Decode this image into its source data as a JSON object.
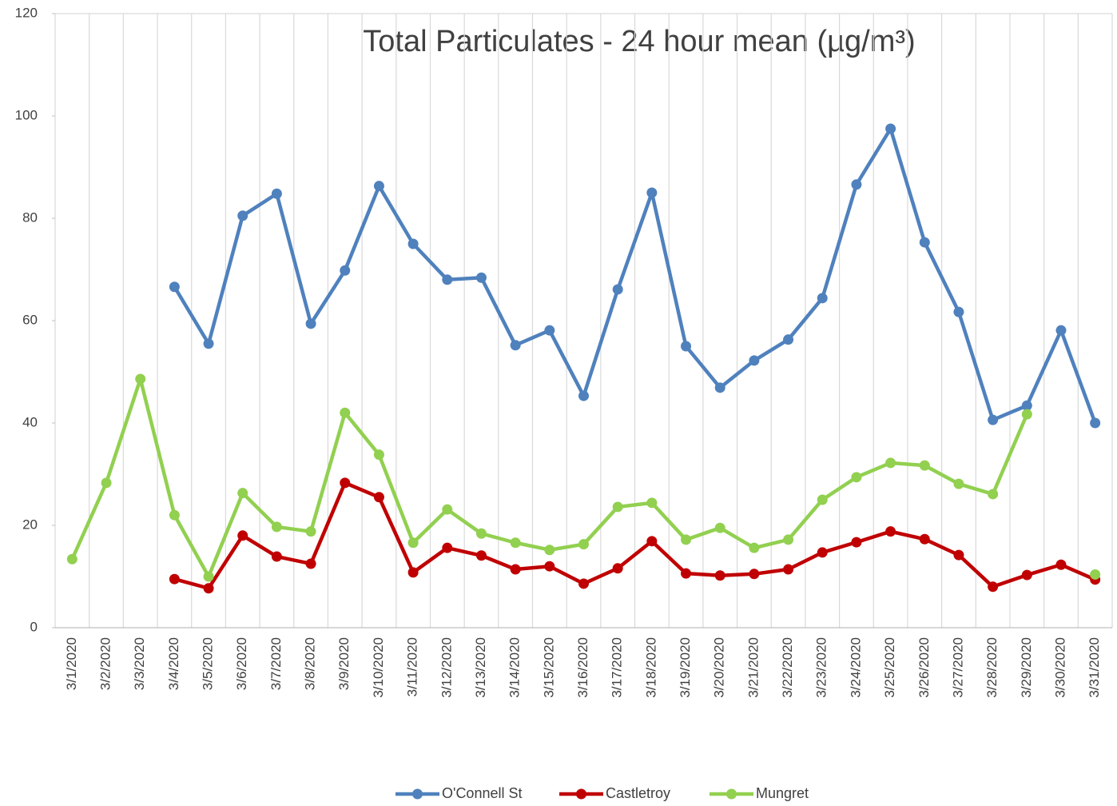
{
  "chart_data": {
    "type": "line",
    "title": "Total Particulates - 24 hour mean (µg/m³)",
    "categories": [
      "3/1/2020",
      "3/2/2020",
      "3/3/2020",
      "3/4/2020",
      "3/5/2020",
      "3/6/2020",
      "3/7/2020",
      "3/8/2020",
      "3/9/2020",
      "3/10/2020",
      "3/11/2020",
      "3/12/2020",
      "3/13/2020",
      "3/14/2020",
      "3/15/2020",
      "3/16/2020",
      "3/17/2020",
      "3/18/2020",
      "3/19/2020",
      "3/20/2020",
      "3/21/2020",
      "3/22/2020",
      "3/23/2020",
      "3/24/2020",
      "3/25/2020",
      "3/26/2020",
      "3/27/2020",
      "3/28/2020",
      "3/29/2020",
      "3/30/2020",
      "3/31/2020"
    ],
    "series": [
      {
        "name": "O'Connell St",
        "color": "#4f81bd",
        "values": [
          null,
          null,
          null,
          66.6,
          55.5,
          80.5,
          84.8,
          59.4,
          69.8,
          86.3,
          75,
          68,
          68.4,
          55.2,
          58.1,
          45.3,
          66.1,
          85,
          55,
          46.9,
          52.2,
          56.3,
          64.4,
          86.6,
          97.5,
          75.3,
          61.7,
          40.6,
          43.4,
          58.1,
          40
        ]
      },
      {
        "name": "Castletroy",
        "color": "#c00000",
        "values": [
          null,
          null,
          null,
          9.5,
          7.7,
          18,
          13.9,
          12.5,
          28.3,
          25.5,
          10.8,
          15.6,
          14.1,
          11.4,
          12,
          8.6,
          11.6,
          16.9,
          10.6,
          10.2,
          10.5,
          11.4,
          14.7,
          16.7,
          18.8,
          17.3,
          14.2,
          8,
          10.3,
          12.3,
          9.4
        ]
      },
      {
        "name": "Mungret",
        "color": "#92d050",
        "values": [
          13.4,
          28.3,
          48.6,
          22,
          10,
          26.3,
          19.7,
          18.8,
          42,
          33.8,
          16.6,
          23.1,
          18.4,
          16.6,
          15.2,
          16.3,
          23.6,
          24.4,
          17.2,
          19.5,
          15.6,
          17.2,
          25,
          29.4,
          32.2,
          31.7,
          28.1,
          26.1,
          41.7,
          null,
          10.4
        ]
      }
    ],
    "ylim": [
      0,
      120
    ],
    "yticks": [
      0,
      20,
      40,
      60,
      80,
      100,
      120
    ],
    "grid": "vertical",
    "legend": "bottom"
  }
}
